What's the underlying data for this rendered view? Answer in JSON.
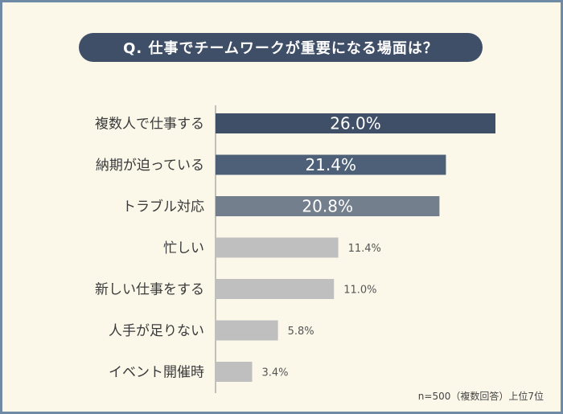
{
  "title": "Q. 仕事でチームワークが重要になる場面は？",
  "note": "n=500（複数回答）上位7位",
  "colors": {
    "background": "#fbf8ea",
    "frame": "#6f8aa4",
    "title_bg": "#3f4f67",
    "axis": "#888888"
  },
  "chart_data": {
    "type": "bar",
    "orientation": "horizontal",
    "categories": [
      "複数人で仕事する",
      "納期が迫っている",
      "トラブル対応",
      "忙しい",
      "新しい仕事をする",
      "人手が足りない",
      "イベント開催時"
    ],
    "values": [
      26.0,
      21.4,
      20.8,
      11.4,
      11.0,
      5.8,
      3.4
    ],
    "value_labels": [
      "26.0%",
      "21.4%",
      "20.8%",
      "11.4%",
      "11.0%",
      "5.8%",
      "3.4%"
    ],
    "bar_colors": [
      "#3f4f67",
      "#4e6078",
      "#747f8d",
      "#bfbfbf",
      "#bfbfbf",
      "#bfbfbf",
      "#bfbfbf"
    ],
    "unit": "%",
    "xlim": [
      0,
      26.0
    ],
    "grid": false
  }
}
